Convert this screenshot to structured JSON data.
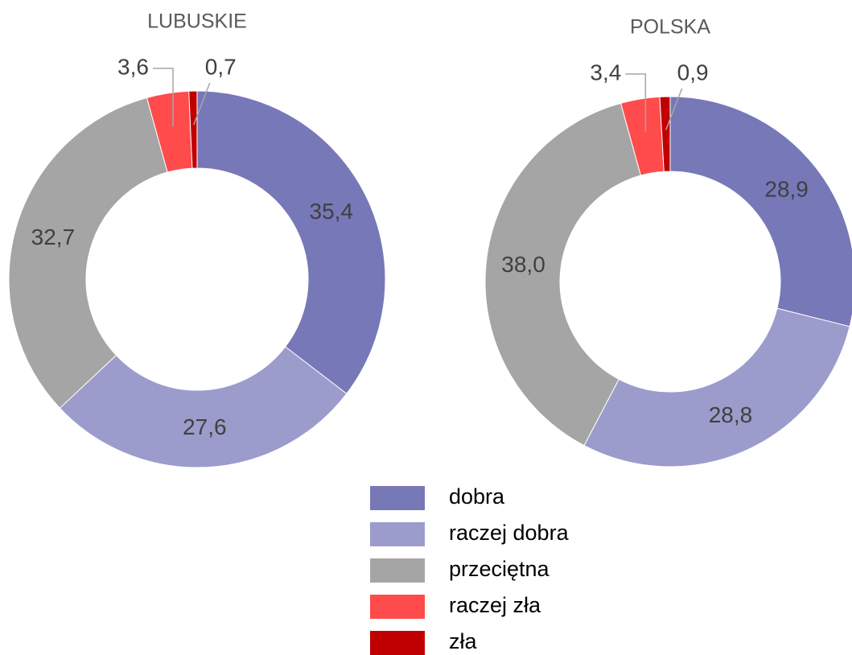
{
  "chart_data": [
    {
      "type": "pie",
      "donut": true,
      "title": "LUBUSKIE",
      "categories": [
        "dobra",
        "raczej dobra",
        "przeciętna",
        "raczej zła",
        "zła"
      ],
      "values": [
        35.4,
        27.6,
        32.7,
        3.6,
        0.7
      ],
      "value_labels": [
        "35,4",
        "27,6",
        "32,7",
        "3,6",
        "0,7"
      ],
      "colors": [
        "#7778b8",
        "#9b9bcc",
        "#a5a5a5",
        "#ff4b4b",
        "#c00000"
      ]
    },
    {
      "type": "pie",
      "donut": true,
      "title": "POLSKA",
      "categories": [
        "dobra",
        "raczej dobra",
        "przeciętna",
        "raczej zła",
        "zła"
      ],
      "values": [
        28.9,
        28.8,
        38.0,
        3.4,
        0.9
      ],
      "value_labels": [
        "28,9",
        "28,8",
        "38,0",
        "3,4",
        "0,9"
      ],
      "colors": [
        "#7778b8",
        "#9b9bcc",
        "#a5a5a5",
        "#ff4b4b",
        "#c00000"
      ]
    }
  ]
}
